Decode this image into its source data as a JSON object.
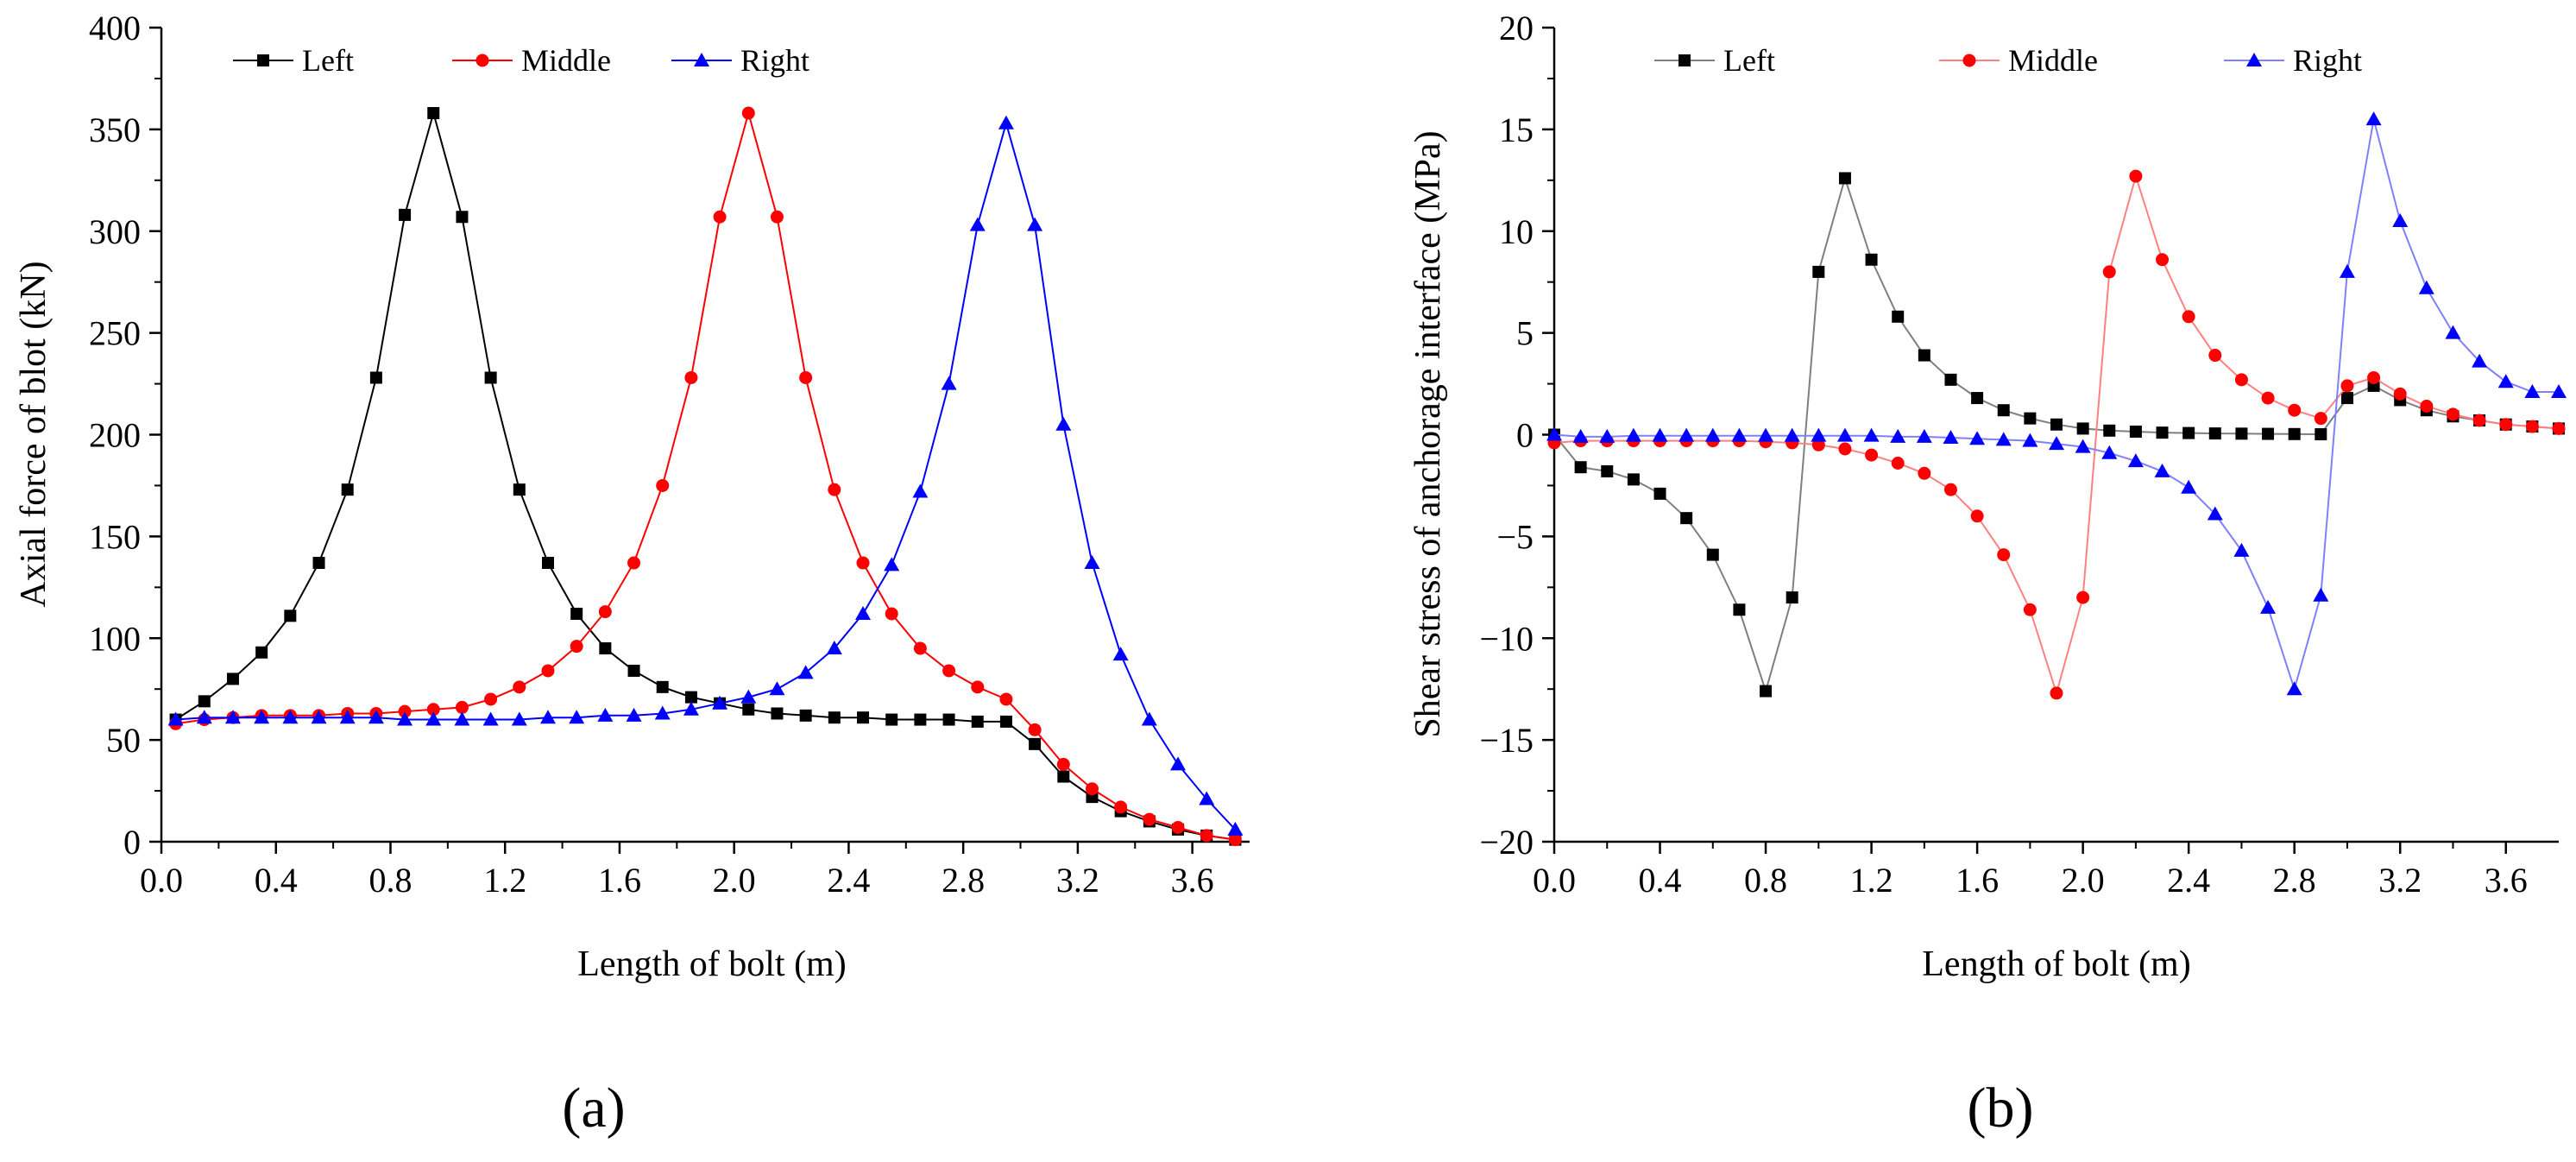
{
  "chart_data": [
    {
      "panel_label": "(a)",
      "type": "line",
      "title": "",
      "xlabel": "Length of bolt (m)",
      "ylabel": "Axial force of blot (kN)",
      "xlim": [
        0,
        3.8
      ],
      "ylim": [
        0,
        400
      ],
      "xticks": [
        0.0,
        0.4,
        0.8,
        1.2,
        1.6,
        2.0,
        2.4,
        2.8,
        3.2,
        3.6
      ],
      "xtick_labels": [
        "0.0",
        "0.4",
        "0.8",
        "1.2",
        "1.6",
        "2.0",
        "2.4",
        "2.8",
        "3.2",
        "3.6"
      ],
      "yticks": [
        0,
        50,
        100,
        150,
        200,
        250,
        300,
        350,
        400
      ],
      "ytick_labels": [
        "0",
        "50",
        "100",
        "150",
        "200",
        "250",
        "300",
        "350",
        "400"
      ],
      "grid": false,
      "legend": "top-left",
      "series": [
        {
          "name": "Left",
          "color": "#000000",
          "marker": "square",
          "x": [
            0.05,
            0.15,
            0.25,
            0.35,
            0.45,
            0.55,
            0.65,
            0.75,
            0.85,
            0.95,
            1.05,
            1.15,
            1.25,
            1.35,
            1.45,
            1.55,
            1.65,
            1.75,
            1.85,
            1.95,
            2.05,
            2.15,
            2.25,
            2.35,
            2.45,
            2.55,
            2.65,
            2.75,
            2.85,
            2.95,
            3.05,
            3.15,
            3.25,
            3.35,
            3.45,
            3.55,
            3.65,
            3.75
          ],
          "y": [
            60,
            69,
            80,
            93,
            111,
            137,
            173,
            228,
            308,
            358,
            307,
            228,
            173,
            137,
            112,
            95,
            84,
            76,
            71,
            68,
            65,
            63,
            62,
            61,
            61,
            60,
            60,
            60,
            59,
            59,
            48,
            32,
            22,
            15,
            10,
            6,
            3,
            1
          ]
        },
        {
          "name": "Middle",
          "color": "#ff0000",
          "marker": "circle",
          "x": [
            0.05,
            0.15,
            0.25,
            0.35,
            0.45,
            0.55,
            0.65,
            0.75,
            0.85,
            0.95,
            1.05,
            1.15,
            1.25,
            1.35,
            1.45,
            1.55,
            1.65,
            1.75,
            1.85,
            1.95,
            2.05,
            2.15,
            2.25,
            2.35,
            2.45,
            2.55,
            2.65,
            2.75,
            2.85,
            2.95,
            3.05,
            3.15,
            3.25,
            3.35,
            3.45,
            3.55,
            3.65,
            3.75
          ],
          "y": [
            58,
            60,
            61,
            62,
            62,
            62,
            63,
            63,
            64,
            65,
            66,
            70,
            76,
            84,
            96,
            113,
            137,
            175,
            228,
            307,
            358,
            307,
            228,
            173,
            137,
            112,
            95,
            84,
            76,
            70,
            55,
            38,
            26,
            17,
            11,
            7,
            3,
            1
          ]
        },
        {
          "name": "Right",
          "color": "#0000ff",
          "marker": "triangle",
          "x": [
            0.05,
            0.15,
            0.25,
            0.35,
            0.45,
            0.55,
            0.65,
            0.75,
            0.85,
            0.95,
            1.05,
            1.15,
            1.25,
            1.35,
            1.45,
            1.55,
            1.65,
            1.75,
            1.85,
            1.95,
            2.05,
            2.15,
            2.25,
            2.35,
            2.45,
            2.55,
            2.65,
            2.75,
            2.85,
            2.95,
            3.05,
            3.15,
            3.25,
            3.35,
            3.45,
            3.55,
            3.65,
            3.75
          ],
          "y": [
            60,
            61,
            61,
            61,
            61,
            61,
            61,
            61,
            60,
            60,
            60,
            60,
            60,
            61,
            61,
            62,
            62,
            63,
            65,
            68,
            71,
            75,
            83,
            95,
            112,
            136,
            172,
            225,
            303,
            353,
            303,
            205,
            137,
            92,
            60,
            38,
            21,
            6
          ]
        }
      ]
    },
    {
      "panel_label": "(b)",
      "type": "line",
      "title": "",
      "xlabel": "Length of bolt (m)",
      "ylabel": "Shear stress of anchorage interface (MPa)",
      "xlim": [
        0,
        3.8
      ],
      "ylim": [
        -20,
        20
      ],
      "xticks": [
        0.0,
        0.4,
        0.8,
        1.2,
        1.6,
        2.0,
        2.4,
        2.8,
        3.2,
        3.6
      ],
      "xtick_labels": [
        "0.0",
        "0.4",
        "0.8",
        "1.2",
        "1.6",
        "2.0",
        "2.4",
        "2.8",
        "3.2",
        "3.6"
      ],
      "yticks": [
        -20,
        -15,
        -10,
        -5,
        0,
        5,
        10,
        15,
        20
      ],
      "ytick_labels": [
        "−20",
        "−15",
        "−10",
        "−5",
        "0",
        "5",
        "10",
        "15",
        "20"
      ],
      "grid": false,
      "legend": "top-left",
      "series": [
        {
          "name": "Left",
          "color": "#000000",
          "line_color": "#7f7f7f",
          "marker": "square",
          "x": [
            0.0,
            0.1,
            0.2,
            0.3,
            0.4,
            0.5,
            0.6,
            0.7,
            0.8,
            0.9,
            1.0,
            1.1,
            1.2,
            1.3,
            1.4,
            1.5,
            1.6,
            1.7,
            1.8,
            1.9,
            2.0,
            2.1,
            2.2,
            2.3,
            2.4,
            2.5,
            2.6,
            2.7,
            2.8,
            2.9,
            3.0,
            3.1,
            3.2,
            3.3,
            3.4,
            3.5,
            3.6,
            3.7,
            3.8
          ],
          "y": [
            0.0,
            -1.6,
            -1.8,
            -2.2,
            -2.9,
            -4.1,
            -5.9,
            -8.6,
            -12.6,
            -8.0,
            8.0,
            12.6,
            8.6,
            5.8,
            3.9,
            2.7,
            1.8,
            1.2,
            0.8,
            0.5,
            0.3,
            0.2,
            0.15,
            0.1,
            0.08,
            0.06,
            0.05,
            0.04,
            0.03,
            0.02,
            1.8,
            2.4,
            1.7,
            1.2,
            0.9,
            0.7,
            0.5,
            0.4,
            0.3
          ]
        },
        {
          "name": "Middle",
          "color": "#ff0000",
          "line_color": "#ff8080",
          "marker": "circle",
          "x": [
            0.0,
            0.1,
            0.2,
            0.3,
            0.4,
            0.5,
            0.6,
            0.7,
            0.8,
            0.9,
            1.0,
            1.1,
            1.2,
            1.3,
            1.4,
            1.5,
            1.6,
            1.7,
            1.8,
            1.9,
            2.0,
            2.1,
            2.2,
            2.3,
            2.4,
            2.5,
            2.6,
            2.7,
            2.8,
            2.9,
            3.0,
            3.1,
            3.2,
            3.3,
            3.4,
            3.5,
            3.6,
            3.7,
            3.8
          ],
          "y": [
            -0.4,
            -0.3,
            -0.3,
            -0.3,
            -0.3,
            -0.3,
            -0.3,
            -0.3,
            -0.35,
            -0.4,
            -0.5,
            -0.7,
            -1.0,
            -1.4,
            -1.9,
            -2.7,
            -4.0,
            -5.9,
            -8.6,
            -12.7,
            -8.0,
            8.0,
            12.7,
            8.6,
            5.8,
            3.9,
            2.7,
            1.8,
            1.2,
            0.8,
            2.4,
            2.8,
            2.0,
            1.4,
            1.0,
            0.7,
            0.5,
            0.4,
            0.3
          ]
        },
        {
          "name": "Right",
          "color": "#0000ff",
          "line_color": "#8080ff",
          "marker": "triangle",
          "x": [
            0.0,
            0.1,
            0.2,
            0.3,
            0.4,
            0.5,
            0.6,
            0.7,
            0.8,
            0.9,
            1.0,
            1.1,
            1.2,
            1.3,
            1.4,
            1.5,
            1.6,
            1.7,
            1.8,
            1.9,
            2.0,
            2.1,
            2.2,
            2.3,
            2.4,
            2.5,
            2.6,
            2.7,
            2.8,
            2.9,
            3.0,
            3.1,
            3.2,
            3.3,
            3.4,
            3.5,
            3.6,
            3.7,
            3.8
          ],
          "y": [
            0.0,
            -0.1,
            -0.1,
            -0.05,
            -0.05,
            -0.05,
            -0.05,
            -0.05,
            -0.05,
            -0.05,
            -0.05,
            -0.05,
            -0.05,
            -0.1,
            -0.1,
            -0.15,
            -0.2,
            -0.25,
            -0.3,
            -0.45,
            -0.6,
            -0.9,
            -1.3,
            -1.8,
            -2.6,
            -3.9,
            -5.7,
            -8.5,
            -12.5,
            -7.9,
            8.0,
            15.5,
            10.5,
            7.2,
            5.0,
            3.6,
            2.6,
            2.1,
            2.1
          ]
        }
      ]
    }
  ]
}
